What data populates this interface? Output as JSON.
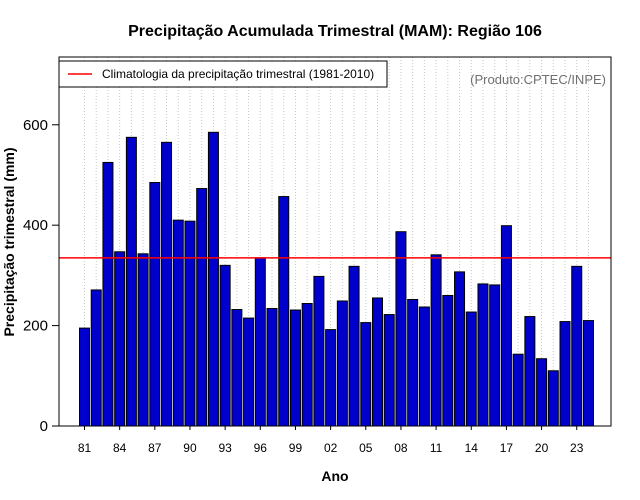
{
  "chart_data": {
    "type": "bar",
    "title": "Precipitação Acumulada Trimestral (MAM): Região 106",
    "xlabel": "Ano",
    "ylabel": "Precipitação trimestral (mm)",
    "ylim": [
      0,
      735
    ],
    "yticks": [
      0,
      200,
      400,
      600
    ],
    "categories": [
      "1981",
      "1982",
      "1983",
      "1984",
      "1985",
      "1986",
      "1987",
      "1988",
      "1989",
      "1990",
      "1991",
      "1992",
      "1993",
      "1994",
      "1995",
      "1996",
      "1997",
      "1998",
      "1999",
      "2000",
      "2001",
      "2002",
      "2003",
      "2004",
      "2005",
      "2006",
      "2007",
      "2008",
      "2009",
      "2010",
      "2011",
      "2012",
      "2013",
      "2014",
      "2015",
      "2016",
      "2017",
      "2018",
      "2019",
      "2020",
      "2021",
      "2022",
      "2023",
      "2024"
    ],
    "xtick_labels": [
      "81",
      "84",
      "87",
      "90",
      "93",
      "96",
      "99",
      "02",
      "05",
      "08",
      "11",
      "14",
      "17",
      "20",
      "23"
    ],
    "values": [
      195,
      271,
      525,
      347,
      575,
      343,
      485,
      565,
      410,
      408,
      473,
      585,
      320,
      232,
      215,
      335,
      234,
      457,
      231,
      244,
      298,
      192,
      249,
      318,
      206,
      255,
      222,
      387,
      252,
      237,
      341,
      260,
      307,
      227,
      283,
      281,
      399,
      143,
      218,
      134,
      110,
      208,
      318,
      210
    ],
    "bar_color": "#0000cd",
    "climatology": {
      "value": 335,
      "label": "Climatologia da precipitação trimestral (1981-2010)",
      "color": "#ff0000"
    },
    "grid": "vertical dotted",
    "legend_position": "top-left",
    "credit": "(Produto:CPTEC/INPE)"
  }
}
